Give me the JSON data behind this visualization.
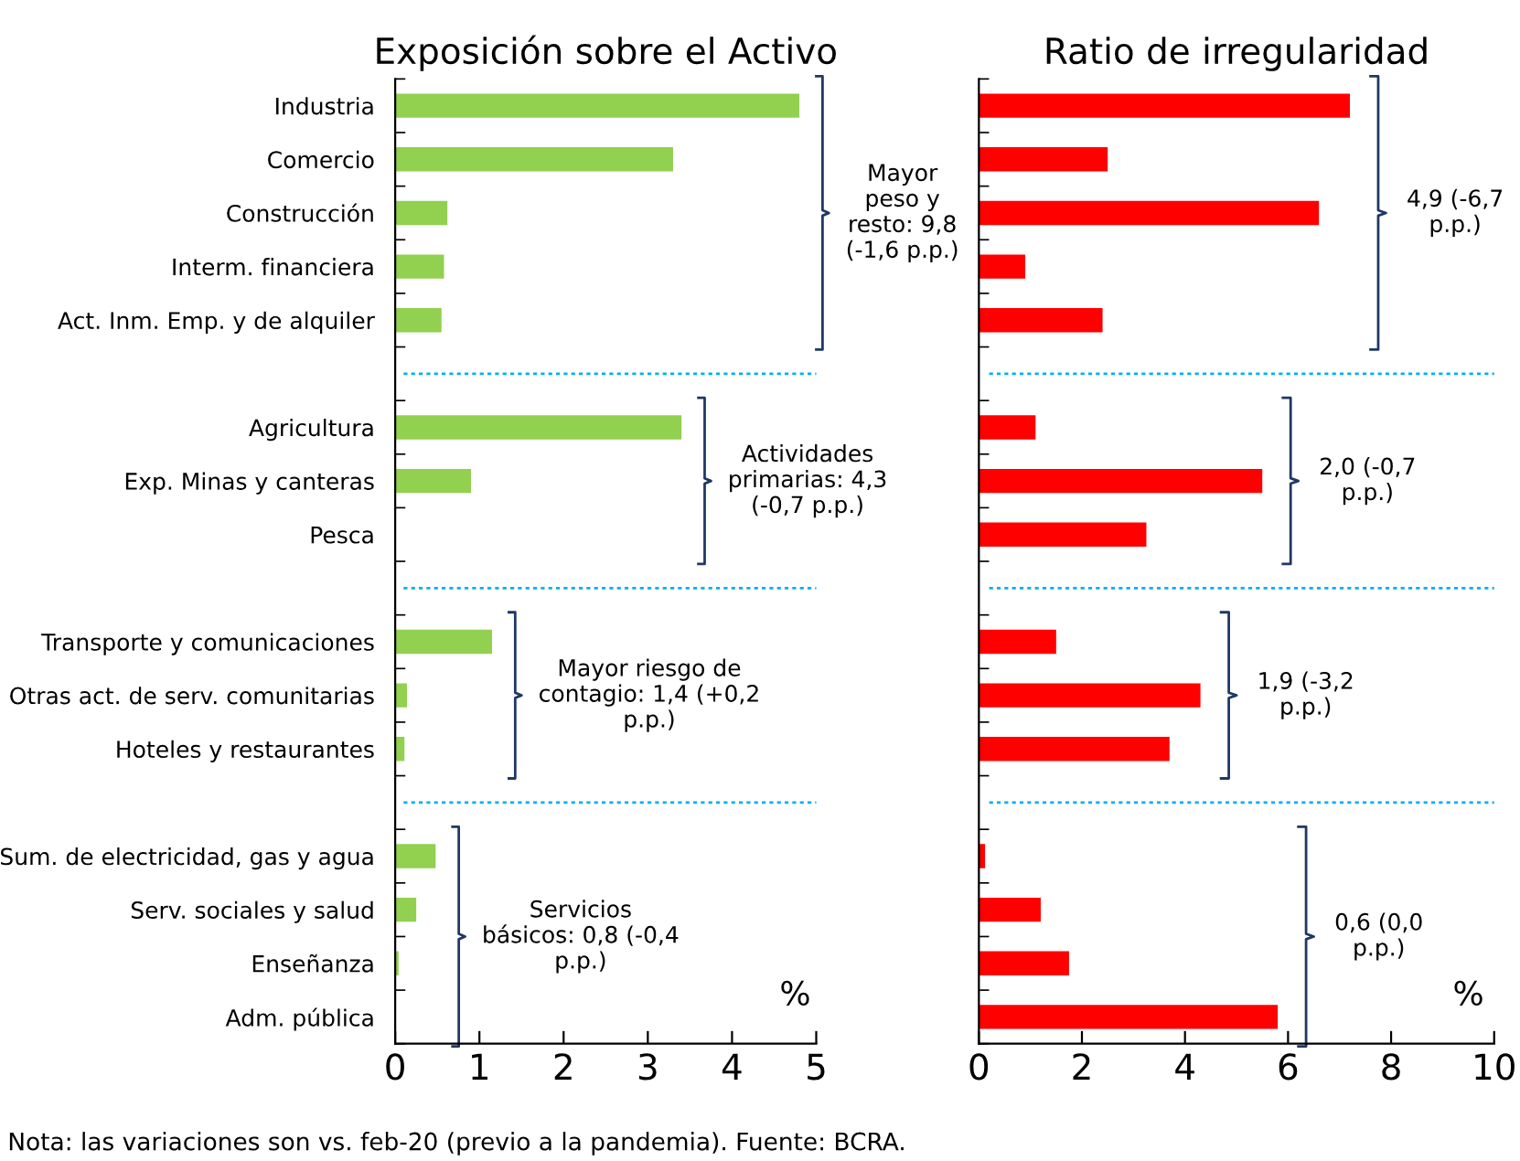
{
  "chart_data": [
    {
      "type": "bar",
      "orientation": "horizontal",
      "title": "Exposición sobre el Activo",
      "xlabel": "%",
      "categories": [
        "Industria",
        "Comercio",
        "Construcción",
        "Interm. financiera",
        "Act. Inm. Emp. y de alquiler",
        null,
        "Agricultura",
        "Exp. Minas y canteras",
        "Pesca",
        null,
        "Transporte y comunicaciones",
        "Otras act. de serv. comunitarias",
        "Hoteles y restaurantes",
        null,
        "Sum. de electricidad, gas y agua",
        "Serv. sociales y salud",
        "Enseñanza",
        "Adm. pública"
      ],
      "values": [
        4.8,
        3.3,
        0.62,
        0.58,
        0.55,
        null,
        3.4,
        0.9,
        0,
        null,
        1.15,
        0.14,
        0.11,
        null,
        0.48,
        0.25,
        0.04,
        0
      ],
      "color": "#92d050",
      "xlim": [
        0,
        5
      ],
      "xticks": [
        0,
        1,
        2,
        3,
        4,
        5
      ],
      "grid": false,
      "annotations": [
        "Mayor\npeso y\nresto: 9,8\n(-1,6 p.p.)",
        "Actividades\nprimarias: 4,3\n(-0,7 p.p.)",
        "Mayor riesgo de\ncontagio: 1,4 (+0,2\np.p.)",
        "Servicios\nbásicos: 0,8 (-0,4\np.p.)",
        "Nota: las variaciones son vs. feb-20 (previo a la pandemia). Fuente: BCRA."
      ]
    },
    {
      "type": "bar",
      "orientation": "horizontal",
      "title": "Ratio de irregularidad",
      "xlabel": "%",
      "tick_labels": "x",
      "categories": [
        null,
        null,
        null,
        null,
        null,
        null,
        null,
        null,
        null,
        null,
        null,
        null,
        null,
        null,
        null,
        null,
        null,
        null
      ],
      "values": [
        7.2,
        2.5,
        6.6,
        0.9,
        2.4,
        null,
        1.1,
        5.5,
        3.25,
        null,
        1.5,
        4.3,
        3.7,
        null,
        0.12,
        1.2,
        1.75,
        5.8
      ],
      "color": "#ff0000",
      "xlim": [
        0,
        10
      ],
      "xticks": [
        0,
        2,
        4,
        6,
        8,
        10
      ],
      "grid": false,
      "annotations": [
        "4,9 (-6,7\np.p.)",
        "2,0 (-0,7\np.p.)",
        "1,9 (-3,2\np.p.)",
        "0,6 (0,0\np.p.)"
      ]
    }
  ]
}
